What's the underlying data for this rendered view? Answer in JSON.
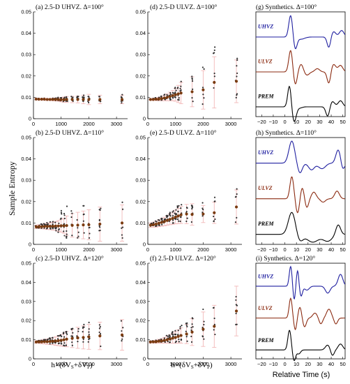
{
  "figure": {
    "ylabel": "Sample Entropy",
    "xlabel_lr": "h×(δVS+δVP)",
    "xlabel_right": "Relative Time (s)"
  },
  "colors": {
    "median": "#7a3b10",
    "errorbar": "#f2b8b8",
    "scatter": "#303030",
    "uhvz": "#1f1fa0",
    "ulvz": "#8b2a10",
    "prem": "#000000"
  },
  "chart_data": [
    {
      "id": "a",
      "type": "scatter",
      "title": "(a) 2.5-D UHVZ.  Δ=100°",
      "xlim": [
        0,
        3400
      ],
      "ylim": [
        0,
        0.05
      ],
      "xticks": [
        "0",
        "1000",
        "2000",
        "3000"
      ],
      "yticks": [
        "0",
        "0.01",
        "0.02",
        "0.03",
        "0.04",
        "0.05"
      ],
      "x": [
        100,
        200,
        300,
        400,
        500,
        600,
        700,
        800,
        900,
        1000,
        1100,
        1200,
        1400,
        1600,
        1800,
        2000,
        2400,
        3200
      ],
      "median": [
        0.0092,
        0.0091,
        0.0091,
        0.0091,
        0.009,
        0.009,
        0.009,
        0.009,
        0.009,
        0.0089,
        0.0089,
        0.009,
        0.009,
        0.009,
        0.009,
        0.009,
        0.009,
        0.009
      ],
      "err": [
        0.0004,
        0.0004,
        0.0004,
        0.0005,
        0.0005,
        0.0005,
        0.0006,
        0.0007,
        0.0008,
        0.001,
        0.0012,
        0.0014,
        0.0015,
        0.0016,
        0.002,
        0.0024,
        0.002,
        0.002
      ],
      "spread": [
        0.0003,
        0.0003,
        0.0003,
        0.0004,
        0.0004,
        0.0004,
        0.0005,
        0.0006,
        0.0008,
        0.0009,
        0.001,
        0.0012,
        0.0013,
        0.0015,
        0.0017,
        0.002,
        0.0015,
        0.002
      ]
    },
    {
      "id": "b",
      "type": "scatter",
      "title": "(b) 2.5-D UHVZ.  Δ=110°",
      "xlim": [
        0,
        3400
      ],
      "ylim": [
        0,
        0.05
      ],
      "xticks": [
        "0",
        "1000",
        "2000",
        "3000"
      ],
      "yticks": [
        "0",
        "0.01",
        "0.02",
        "0.03",
        "0.04",
        "0.05"
      ],
      "x": [
        100,
        200,
        300,
        400,
        500,
        600,
        700,
        800,
        900,
        1000,
        1100,
        1200,
        1400,
        1600,
        1800,
        2000,
        2400,
        3200
      ],
      "median": [
        0.0082,
        0.0083,
        0.0083,
        0.0084,
        0.0084,
        0.0085,
        0.0085,
        0.0086,
        0.0086,
        0.0087,
        0.0087,
        0.0088,
        0.0089,
        0.009,
        0.0091,
        0.0092,
        0.0095,
        0.01
      ],
      "err": [
        0.0008,
        0.0009,
        0.001,
        0.0012,
        0.0014,
        0.0016,
        0.0018,
        0.002,
        0.0025,
        0.003,
        0.0035,
        0.0045,
        0.0055,
        0.006,
        0.0065,
        0.007,
        0.008,
        0.0085
      ],
      "spread": [
        0.0006,
        0.0008,
        0.001,
        0.0012,
        0.0015,
        0.0018,
        0.0022,
        0.003,
        0.004,
        0.006,
        0.007,
        0.008,
        0.008,
        0.0085,
        0.008,
        0.009,
        0.008,
        0.009
      ]
    },
    {
      "id": "c",
      "type": "scatter",
      "title": "(c) 2.5-D UHVZ.  Δ=120°",
      "xlim": [
        0,
        3400
      ],
      "ylim": [
        0,
        0.05
      ],
      "xticks": [
        "0",
        "1000",
        "2000",
        "3000"
      ],
      "yticks": [
        "0",
        "0.01",
        "0.02",
        "0.03",
        "0.04",
        "0.05"
      ],
      "x": [
        100,
        200,
        300,
        400,
        500,
        600,
        700,
        800,
        900,
        1000,
        1100,
        1200,
        1400,
        1600,
        1800,
        2000,
        2400,
        3200
      ],
      "median": [
        0.0088,
        0.0089,
        0.0089,
        0.009,
        0.009,
        0.0091,
        0.0092,
        0.0093,
        0.0095,
        0.0097,
        0.01,
        0.0103,
        0.0107,
        0.011,
        0.0112,
        0.0115,
        0.012,
        0.0125
      ],
      "err": [
        0.0006,
        0.0008,
        0.001,
        0.0012,
        0.0014,
        0.0016,
        0.0018,
        0.0022,
        0.0026,
        0.003,
        0.0035,
        0.004,
        0.0048,
        0.0055,
        0.006,
        0.0065,
        0.0072,
        0.008
      ],
      "spread": [
        0.0004,
        0.0006,
        0.0008,
        0.001,
        0.0012,
        0.0015,
        0.0018,
        0.0022,
        0.0028,
        0.0034,
        0.004,
        0.0046,
        0.0052,
        0.0058,
        0.0062,
        0.0066,
        0.007,
        0.0075
      ]
    },
    {
      "id": "d",
      "type": "scatter",
      "title": "(d) 2.5-D ULVZ.  Δ=100°",
      "xlim": [
        0,
        3400
      ],
      "ylim": [
        0,
        0.05
      ],
      "xticks": [
        "0",
        "1000",
        "2000",
        "3000"
      ],
      "yticks": [
        "0",
        "0.01",
        "0.02",
        "0.03",
        "0.04",
        "0.05"
      ],
      "x": [
        100,
        200,
        300,
        400,
        500,
        600,
        700,
        800,
        900,
        1000,
        1100,
        1200,
        1600,
        2000,
        2400,
        3200
      ],
      "median": [
        0.009,
        0.009,
        0.0091,
        0.0092,
        0.0094,
        0.0097,
        0.01,
        0.0104,
        0.0108,
        0.0112,
        0.0116,
        0.012,
        0.0126,
        0.0135,
        0.017,
        0.0175
      ],
      "err": [
        0.0004,
        0.0005,
        0.0006,
        0.0008,
        0.001,
        0.0013,
        0.0016,
        0.002,
        0.0024,
        0.003,
        0.004,
        0.005,
        0.007,
        0.009,
        0.012,
        0.01
      ],
      "spread": [
        0.0003,
        0.0004,
        0.0006,
        0.0008,
        0.001,
        0.0014,
        0.0018,
        0.0022,
        0.0026,
        0.003,
        0.004,
        0.005,
        0.006,
        0.009,
        0.014,
        0.01
      ]
    },
    {
      "id": "e",
      "type": "scatter",
      "title": "(e) 2.5-D ULVZ.  Δ=110°",
      "xlim": [
        0,
        3400
      ],
      "ylim": [
        0,
        0.05
      ],
      "xticks": [
        "0",
        "1000",
        "2000",
        "3000"
      ],
      "yticks": [
        "0",
        "0.01",
        "0.02",
        "0.03",
        "0.04",
        "0.05"
      ],
      "x": [
        100,
        200,
        300,
        400,
        500,
        600,
        700,
        800,
        900,
        1000,
        1100,
        1200,
        1400,
        1600,
        2000,
        2400,
        3200
      ],
      "median": [
        0.009,
        0.0092,
        0.0095,
        0.0099,
        0.0103,
        0.0107,
        0.0112,
        0.0117,
        0.0122,
        0.0128,
        0.0133,
        0.0138,
        0.0142,
        0.014,
        0.0142,
        0.0148,
        0.0175
      ],
      "err": [
        0.001,
        0.0012,
        0.0014,
        0.0016,
        0.0018,
        0.002,
        0.0022,
        0.0025,
        0.0028,
        0.0032,
        0.0036,
        0.004,
        0.0045,
        0.005,
        0.004,
        0.005,
        0.008
      ],
      "spread": [
        0.0008,
        0.001,
        0.0012,
        0.0014,
        0.0017,
        0.002,
        0.0024,
        0.0028,
        0.0032,
        0.0036,
        0.004,
        0.0044,
        0.0048,
        0.005,
        0.0045,
        0.006,
        0.009
      ]
    },
    {
      "id": "f",
      "type": "scatter",
      "title": "(f) 2.5-D ULVZ.  Δ=120°",
      "xlim": [
        0,
        3400
      ],
      "ylim": [
        0,
        0.05
      ],
      "xticks": [
        "0",
        "1000",
        "2000",
        "3000"
      ],
      "yticks": [
        "0",
        "0.01",
        "0.02",
        "0.03",
        "0.04",
        "0.05"
      ],
      "x": [
        100,
        200,
        300,
        400,
        500,
        600,
        700,
        800,
        900,
        1000,
        1100,
        1200,
        1400,
        1600,
        2000,
        2400,
        3200
      ],
      "median": [
        0.0088,
        0.0089,
        0.009,
        0.0092,
        0.0094,
        0.0097,
        0.01,
        0.0104,
        0.0108,
        0.0112,
        0.0117,
        0.0122,
        0.013,
        0.014,
        0.0155,
        0.017,
        0.025
      ],
      "err": [
        0.0005,
        0.0006,
        0.0008,
        0.001,
        0.0012,
        0.0015,
        0.0018,
        0.0022,
        0.0026,
        0.003,
        0.0035,
        0.004,
        0.005,
        0.007,
        0.009,
        0.011,
        0.013
      ],
      "spread": [
        0.0004,
        0.0005,
        0.0007,
        0.0009,
        0.0012,
        0.0015,
        0.0019,
        0.0023,
        0.0028,
        0.0032,
        0.0038,
        0.0044,
        0.0052,
        0.0065,
        0.009,
        0.01,
        0.012
      ]
    }
  ],
  "synthetics": [
    {
      "id": "g",
      "title": "(g) Synthetics.  Δ=100°",
      "xticks": [
        "−20",
        "−10",
        "0",
        "10",
        "20",
        "30",
        "40",
        "50"
      ],
      "xlim": [
        -25,
        52
      ],
      "traces": [
        {
          "label": "UHVZ",
          "shape": "g_uhvz"
        },
        {
          "label": "ULVZ",
          "shape": "g_ulvz"
        },
        {
          "label": "PREM",
          "shape": "g_prem"
        }
      ]
    },
    {
      "id": "h",
      "title": "(h) Synthetics.  Δ=110°",
      "xticks": [
        "−20",
        "−10",
        "0",
        "10",
        "20",
        "30",
        "40",
        "50"
      ],
      "xlim": [
        -25,
        52
      ],
      "traces": [
        {
          "label": "UHVZ",
          "shape": "h_uhvz"
        },
        {
          "label": "ULVZ",
          "shape": "h_ulvz"
        },
        {
          "label": "PREM",
          "shape": "h_prem"
        }
      ]
    },
    {
      "id": "i",
      "title": "(i) Synthetics.  Δ=120°",
      "xticks": [
        "−20",
        "−10",
        "0",
        "10",
        "20",
        "30",
        "40",
        "50"
      ],
      "xlim": [
        -25,
        52
      ],
      "traces": [
        {
          "label": "UHVZ",
          "shape": "i_uhvz"
        },
        {
          "label": "ULVZ",
          "shape": "i_ulvz"
        },
        {
          "label": "PREM",
          "shape": "i_prem"
        }
      ]
    }
  ]
}
